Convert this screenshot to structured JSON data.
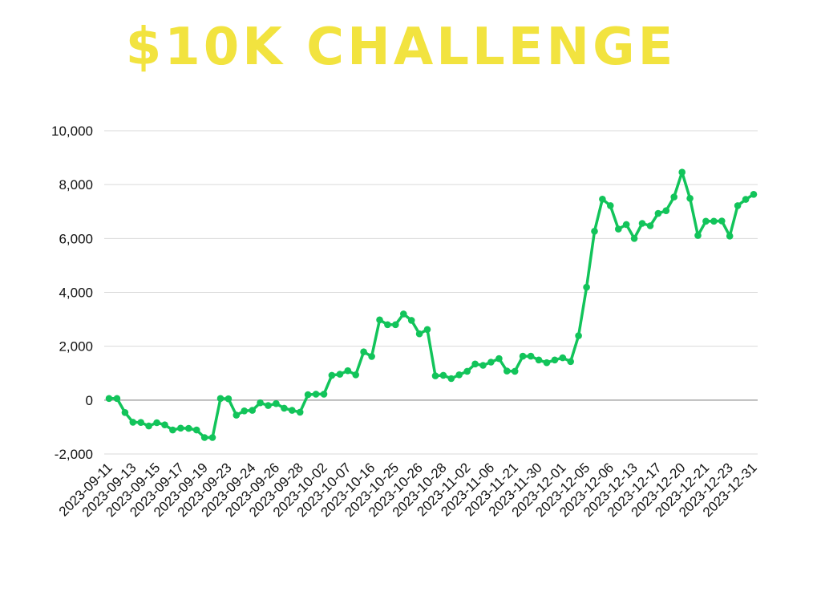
{
  "chart_data": {
    "type": "line",
    "title": "$10K CHALLENGE",
    "xlabel": "",
    "ylabel": "",
    "ylim": [
      -2000,
      10000
    ],
    "yticks": [
      -2000,
      0,
      2000,
      4000,
      6000,
      8000,
      10000
    ],
    "ytick_labels": [
      "-2,000",
      "0",
      "2,000",
      "4,000",
      "6,000",
      "8,000",
      "10,000"
    ],
    "xtick_labels": [
      "2023-09-11",
      "2023-09-13",
      "2023-09-15",
      "2023-09-17",
      "2023-09-19",
      "2023-09-23",
      "2023-09-24",
      "2023-09-26",
      "2023-09-28",
      "2023-10-02",
      "2023-10-07",
      "2023-10-16",
      "2023-10-25",
      "2023-10-26",
      "2023-10-28",
      "2023-11-02",
      "2023-11-06",
      "2023-11-21",
      "2023-11-30",
      "2023-12-01",
      "2023-12-05",
      "2023-12-06",
      "2023-12-13",
      "2023-12-17",
      "2023-12-20",
      "2023-12-21",
      "2023-12-23",
      "2023-12-31"
    ],
    "grid": true,
    "colors": {
      "title": "#f2e33f",
      "line": "#12c45a",
      "grid": "#d9d9d9",
      "zero_line": "#a6a6a6"
    },
    "values": [
      60,
      60,
      -460,
      -820,
      -830,
      -960,
      -840,
      -920,
      -1110,
      -1040,
      -1050,
      -1110,
      -1390,
      -1390,
      60,
      50,
      -560,
      -400,
      -380,
      -100,
      -200,
      -130,
      -300,
      -380,
      -450,
      200,
      220,
      220,
      920,
      960,
      1090,
      940,
      1790,
      1620,
      2980,
      2800,
      2800,
      3200,
      2960,
      2460,
      2620,
      900,
      920,
      800,
      940,
      1070,
      1340,
      1290,
      1410,
      1540,
      1080,
      1070,
      1630,
      1630,
      1490,
      1390,
      1490,
      1570,
      1430,
      2390,
      4190,
      6270,
      7460,
      7220,
      6350,
      6520,
      6000,
      6560,
      6470,
      6930,
      7030,
      7540,
      8460,
      7490,
      6110,
      6640,
      6640,
      6650,
      6090,
      7220,
      7450,
      7640
    ]
  }
}
